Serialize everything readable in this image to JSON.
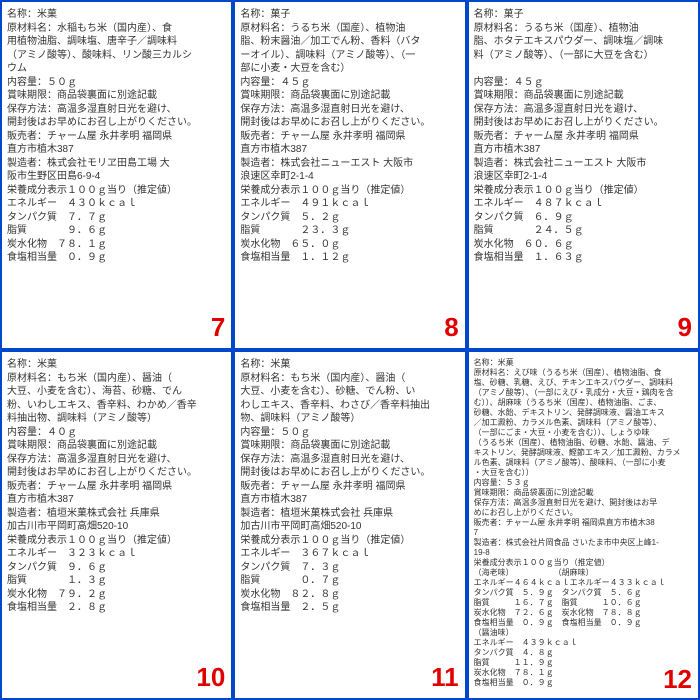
{
  "panels": [
    {
      "num": "7",
      "size": "normal",
      "lines": [
        "名称：米菓",
        "原材料名：水稲もち米（国内産）、食",
        "用植物油脂、調味塩、唐辛子／調味料",
        "（アミノ酸等）、酸味料、リン酸三カルシ",
        "ウム",
        "内容量：５０ｇ",
        "賞味期限：商品袋裏面に別途記載",
        "保存方法：高温多湿直射日光を避け、",
        "開封後はお早めにお召し上がりください。",
        "販売者：チャーム屋 永井孝明 福岡県",
        "直方市植木387",
        "製造者：株式会社モリヱ田島工場 大",
        "阪市生野区田島6-9-4",
        "栄養成分表示１００ｇ当り（推定値）",
        "エネルギー　４３０ｋｃａｌ",
        "タンパク質　７．７ｇ",
        "脂質　　　　９．６ｇ",
        "炭水化物　７８．１ｇ",
        "食塩相当量　０．９ｇ"
      ]
    },
    {
      "num": "8",
      "size": "normal",
      "lines": [
        "名称：菓子",
        "原材料名：うるち米（国産）、植物油",
        "脂、粉末醤油／加工でん粉、香料（バタ",
        "ーオイル）、調味料（アミノ酸等）、（一",
        "部に小麦・大豆を含む）",
        "内容量：４５ｇ",
        "賞味期限：商品袋裏面に別途記載",
        "保存方法：高温多湿直射日光を避け、",
        "開封後はお早めにお召し上がりください。",
        "販売者：チャーム屋 永井孝明 福岡県",
        "直方市植木387",
        "製造者：株式会社ニューエスト 大阪市",
        "浪速区幸町2-1-4",
        "栄養成分表示１００ｇ当り（推定値）",
        "エネルギー　４９１ｋｃａｌ",
        "タンパク質　５．２ｇ",
        "脂質　　　　２３．３ｇ",
        "炭水化物　６５．０ｇ",
        "食塩相当量　１．１２ｇ"
      ]
    },
    {
      "num": "9",
      "size": "normal",
      "lines": [
        "名称：菓子",
        "原材料名：うるち米（国産）、植物油",
        "脂、ホタテエキスパウダー、調味塩／調味",
        "料（アミノ酸等）、（一部に大豆を含む）",
        "",
        "内容量：４５ｇ",
        "賞味期限：商品袋裏面に別途記載",
        "保存方法：高温多湿直射日光を避け、",
        "開封後はお早めにお召し上がりください。",
        "販売者：チャーム屋 永井孝明 福岡県",
        "直方市植木387",
        "製造者：株式会社ニューエスト 大阪市",
        "浪速区幸町2-1-4",
        "栄養成分表示１００ｇ当り（推定値）",
        "エネルギー　４８７ｋｃａｌ",
        "タンパク質　６．９ｇ",
        "脂質　　　　２４．５ｇ",
        "炭水化物　６０．６ｇ",
        "食塩相当量　１．６３ｇ"
      ]
    },
    {
      "num": "10",
      "size": "normal",
      "lines": [
        "名称：米菓",
        "原材料名：もち米（国内産）、醤油（",
        "大豆、小麦を含む）、海苔、砂糖、でん",
        "粉、いわしエキス、香辛料、わかめ／香辛",
        "料抽出物、調味料（アミノ酸等）",
        "内容量：４０ｇ",
        "賞味期限：商品袋裏面に別途記載",
        "保存方法：高温多湿直射日光を避け、",
        "開封後はお早めにお召し上がりください。",
        "販売者：チャーム屋 永井孝明 福岡県",
        "直方市植木387",
        "製造者：植垣米菓株式会社 兵庫県",
        "加古川市平岡町高畑520-10",
        "栄養成分表示１００ｇ当り（推定値）",
        "エネルギー　３２３ｋｃａｌ",
        "タンパク質　９．６ｇ",
        "脂質　　　　１．３ｇ",
        "炭水化物　７９．２ｇ",
        "食塩相当量　２．８ｇ"
      ]
    },
    {
      "num": "11",
      "size": "normal",
      "lines": [
        "名称：米菓",
        "原材料名：もち米（国内産）、醤油（",
        "大豆、小麦を含む）、砂糖、でん粉、い",
        "わしエキス、香辛料、わさび／香辛料抽出",
        "物、調味料（アミノ酸等）",
        "内容量：５０ｇ",
        "賞味期限：商品袋裏面に別途記載",
        "保存方法：高温多湿直射日光を避け、",
        "開封後はお早めにお召し上がりください。",
        "販売者：チャーム屋 永井孝明 福岡県",
        "直方市植木387",
        "製造者：植垣米菓株式会社 兵庫県",
        "加古川市平岡町高畑520-10",
        "栄養成分表示１００ｇ当り（推定値）",
        "エネルギー　３６７ｋｃａｌ",
        "タンパク質　７．３ｇ",
        "脂質　　　　０．７ｇ",
        "炭水化物　８２．８ｇ",
        "食塩相当量　２．５ｇ"
      ]
    },
    {
      "num": "12",
      "size": "small",
      "lines": [
        "名称：米菓",
        "原材料名：えび味（うるち米（国産）、植物油脂、食",
        "塩、砂糖、乳糖、えび、チキンエキスパウダー、調味料",
        "（アミノ酸等）、（一部にえび・乳成分・大豆・鶏肉を含",
        "む））、胡麻味（うるち米（国産）、植物油脂、ごま、",
        "砂糖、水飴、デキストリン、発酵調味液、醤油エキス",
        "／加工澱粉、カラメル色素、調味料（アミノ酸等）、",
        "（一部にごま・大豆・小麦を含む））、しょうゆ味",
        "（うるち米（国産）、植物油脂、砂糖、水飴、醤油、デ",
        "キストリン、発酵調味液、鰹節エキス／加工澱粉、カラメ",
        "ル色素、調味料（アミノ酸等）、酸味料、（一部に小麦",
        "・大豆を含む））",
        "内容量：５３ｇ",
        "賞味期限：商品袋裏面に別途記載",
        "保存方法：高温多湿直射日光を避け、開封後はお早",
        "めにお召し上がりください。",
        "販売者：チャーム屋 永井孝明 福岡県直方市植木38",
        "7",
        "製造者：株式会社片岡食品 さいたま市中央区上峰1-",
        "19-8",
        "栄養成分表示１００ｇ当り（推定値）",
        "（海老味）　　　　　　（胡麻味）",
        "エネルギー４６４ｋｃａｌエネルギー４３３ｋｃａｌ",
        "タンパク質　５．９ｇ　タンパク質　５．６ｇ",
        "脂質　　　１６．７ｇ　脂質　　　１０．６ｇ",
        "炭水化物　７２．６ｇ　炭水化物　７８．８ｇ",
        "食塩相当量　０．９ｇ　食塩相当量　０．９ｇ",
        "（醤油味）",
        "エネルギー　４３９ｋｃａｌ",
        "タンパク質　４．８ｇ",
        "脂質　　　１１．９ｇ",
        "炭水化物　７８．１ｇ",
        "食塩相当量　０．９ｇ"
      ]
    }
  ]
}
